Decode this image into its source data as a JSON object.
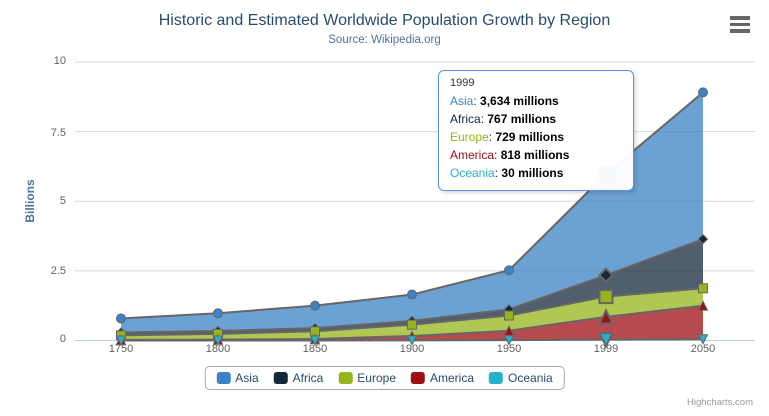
{
  "header": {
    "title": "Historic and Estimated Worldwide Population Growth by Region",
    "subtitle": "Source: Wikipedia.org"
  },
  "credits": {
    "label": "Highcharts.com"
  },
  "yaxis": {
    "title": "Billions",
    "tick_labels": [
      "10",
      "7.5",
      "5",
      "2.5",
      "0"
    ]
  },
  "tooltip": {
    "header": "1999",
    "separator": ":",
    "rows": [
      {
        "name": "Asia",
        "value": "3,634 millions"
      },
      {
        "name": "Africa",
        "value": "767 millions"
      },
      {
        "name": "Europe",
        "value": "729 millions"
      },
      {
        "name": "America",
        "value": "818 millions"
      },
      {
        "name": "Oceania",
        "value": "30 millions"
      }
    ]
  },
  "colors": {
    "title": "#274B6D",
    "subtitle": "#4D759E",
    "axis_label": "#606060",
    "axis_title": "#4D759E",
    "grid_line": "#D8D8D8",
    "axis_line": "#C0D0E0",
    "series_outline": "#666666",
    "tooltip_border": "#5C96D6",
    "legend_text": "#274B6D",
    "credits_text": "#999999",
    "menu_icon": "#666666"
  },
  "chart_data": {
    "type": "area",
    "stacking": "normal",
    "title": "Historic and Estimated Worldwide Population Growth by Region",
    "subtitle": "Source: Wikipedia.org",
    "categories": [
      "1750",
      "1800",
      "1850",
      "1900",
      "1950",
      "1999",
      "2050"
    ],
    "unit": "millions",
    "ylabel": "Billions",
    "ylim_billions": [
      0,
      10
    ],
    "grid_billions": [
      0,
      2.5,
      5,
      7.5,
      10
    ],
    "grid_on": true,
    "legend_position": "bottom",
    "hover_index": 5,
    "series": [
      {
        "name": "Asia",
        "color": "#3B82C6",
        "symbol": "circle",
        "values": [
          502,
          635,
          809,
          947,
          1402,
          3634,
          5268
        ]
      },
      {
        "name": "Africa",
        "color": "#16283C",
        "symbol": "diamond",
        "values": [
          106,
          107,
          111,
          133,
          221,
          767,
          1766
        ]
      },
      {
        "name": "Europe",
        "color": "#94B51B",
        "symbol": "square",
        "values": [
          163,
          203,
          276,
          408,
          547,
          729,
          628
        ]
      },
      {
        "name": "America",
        "color": "#9E0E13",
        "symbol": "triangle",
        "values": [
          18,
          31,
          54,
          156,
          339,
          818,
          1201
        ]
      },
      {
        "name": "Oceania",
        "color": "#24B1CC",
        "symbol": "triangle-down",
        "values": [
          2,
          2,
          2,
          6,
          13,
          30,
          46
        ]
      }
    ]
  }
}
